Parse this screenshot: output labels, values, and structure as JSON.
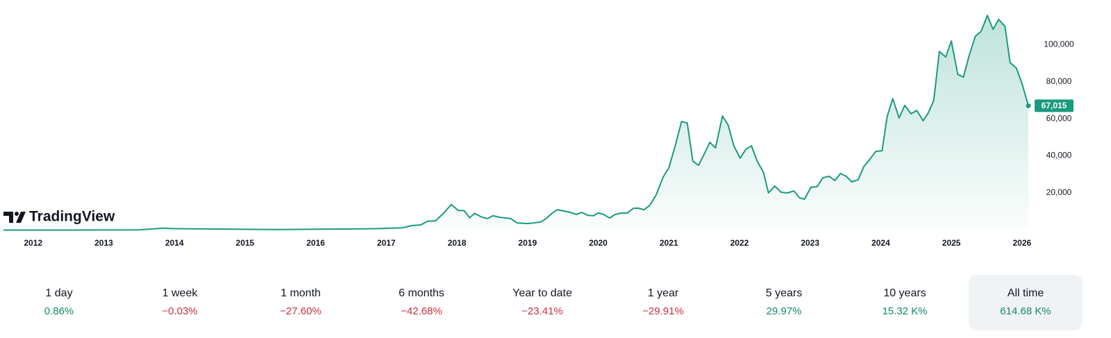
{
  "chart_data": {
    "type": "area",
    "x": [
      2011.58,
      2012.51,
      2013.49,
      2013.84,
      2013.99,
      2014.48,
      2015.46,
      2016.44,
      2016.84,
      2017.23,
      2017.35,
      2017.49,
      2017.58,
      2017.7,
      2017.82,
      2017.92,
      2018.02,
      2018.1,
      2018.18,
      2018.25,
      2018.34,
      2018.43,
      2018.51,
      2018.61,
      2018.76,
      2018.85,
      2019.0,
      2019.18,
      2019.25,
      2019.35,
      2019.42,
      2019.51,
      2019.61,
      2019.69,
      2019.77,
      2019.85,
      2019.93,
      2020.0,
      2020.08,
      2020.16,
      2020.24,
      2020.33,
      2020.41,
      2020.5,
      2020.57,
      2020.65,
      2020.73,
      2020.82,
      2020.92,
      2021.0,
      2021.09,
      2021.18,
      2021.26,
      2021.34,
      2021.42,
      2021.5,
      2021.58,
      2021.66,
      2021.76,
      2021.84,
      2021.92,
      2022.01,
      2022.09,
      2022.17,
      2022.25,
      2022.34,
      2022.41,
      2022.5,
      2022.59,
      2022.68,
      2022.77,
      2022.85,
      2022.92,
      2023.01,
      2023.1,
      2023.18,
      2023.27,
      2023.35,
      2023.43,
      2023.51,
      2023.59,
      2023.68,
      2023.76,
      2023.84,
      2023.93,
      2024.02,
      2024.09,
      2024.17,
      2024.26,
      2024.34,
      2024.43,
      2024.51,
      2024.6,
      2024.67,
      2024.75,
      2024.83,
      2024.92,
      2025.0,
      2025.09,
      2025.17,
      2025.25,
      2025.34,
      2025.42,
      2025.51,
      2025.59,
      2025.67,
      2025.76,
      2025.83,
      2025.92,
      2026.0,
      2026.09
    ],
    "values": [
      5,
      10,
      100,
      1000,
      800,
      600,
      250,
      600,
      750,
      1200,
      2400,
      2800,
      4700,
      5000,
      9500,
      13800,
      10500,
      10500,
      6700,
      9000,
      7200,
      6200,
      7700,
      6900,
      6200,
      3900,
      3500,
      4300,
      5800,
      9200,
      11000,
      10300,
      9500,
      8400,
      9500,
      8000,
      7700,
      9200,
      8400,
      6500,
      8400,
      9200,
      9200,
      11800,
      11800,
      11000,
      13300,
      18900,
      28600,
      33500,
      45400,
      58500,
      57700,
      37200,
      34900,
      40900,
      47300,
      44300,
      61500,
      56600,
      45400,
      38700,
      43500,
      45400,
      37200,
      31200,
      20000,
      23700,
      20400,
      20000,
      21100,
      17400,
      16600,
      23000,
      23400,
      28200,
      29000,
      26700,
      30500,
      29000,
      26000,
      27100,
      34200,
      37900,
      42400,
      42800,
      61200,
      70900,
      60400,
      67200,
      62700,
      64500,
      58900,
      63000,
      69800,
      96300,
      93300,
      101900,
      83900,
      82400,
      94000,
      104500,
      107100,
      115700,
      108200,
      113500,
      109700,
      90300,
      87300,
      79000,
      67015
    ],
    "color": "#1a9a7e",
    "xlim": [
      2011.58,
      2026.09
    ],
    "xticks": [
      2012,
      2013,
      2014,
      2015,
      2016,
      2017,
      2018,
      2019,
      2020,
      2021,
      2022,
      2023,
      2024,
      2025,
      2026
    ],
    "ylim": [
      0,
      124000
    ],
    "yticks": [
      {
        "value": 20000,
        "label": "20,000"
      },
      {
        "value": 40000,
        "label": "40,000"
      },
      {
        "value": 60000,
        "label": "60,000"
      },
      {
        "value": 80000,
        "label": "80,000"
      },
      {
        "value": 100000,
        "label": "100,000"
      }
    ],
    "price_tag": {
      "value": 67015,
      "label": "67,015"
    },
    "grid": false
  },
  "logo": "TradingView",
  "periods": [
    {
      "label": "1 day",
      "value": "0.86%",
      "color": "#14866d",
      "selected": false
    },
    {
      "label": "1 week",
      "value": "−0.03%",
      "color": "#cc2f3c",
      "selected": false
    },
    {
      "label": "1 month",
      "value": "−27.60%",
      "color": "#cc2f3c",
      "selected": false
    },
    {
      "label": "6 months",
      "value": "−42.68%",
      "color": "#cc2f3c",
      "selected": false
    },
    {
      "label": "Year to date",
      "value": "−23.41%",
      "color": "#cc2f3c",
      "selected": false
    },
    {
      "label": "1 year",
      "value": "−29.91%",
      "color": "#cc2f3c",
      "selected": false
    },
    {
      "label": "5 years",
      "value": "29.97%",
      "color": "#14866d",
      "selected": false
    },
    {
      "label": "10 years",
      "value": "15.32 K%",
      "color": "#14866d",
      "selected": false
    },
    {
      "label": "All time",
      "value": "614.68 K%",
      "color": "#14866d",
      "selected": true
    }
  ]
}
